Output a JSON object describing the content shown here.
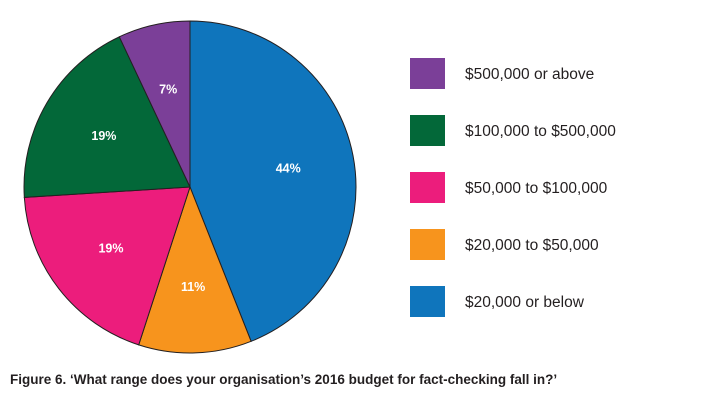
{
  "chart_data": {
    "type": "pie",
    "title": "Figure 6. ‘What range does your organisation’s 2016 budget for fact-checking fall in?’",
    "slices": [
      {
        "label": "$20,000 or below",
        "value": 44,
        "display": "44%",
        "color": "#0f75bc"
      },
      {
        "label": "$20,000 to $50,000",
        "value": 11,
        "display": "11%",
        "color": "#f7941d"
      },
      {
        "label": "$50,000 to $100,000",
        "value": 19,
        "display": "19%",
        "color": "#ec1d7c"
      },
      {
        "label": "$100,000 to $500,000",
        "value": 19,
        "display": "19%",
        "color": "#036839"
      },
      {
        "label": "$500,000 or above",
        "value": 7,
        "display": "7%",
        "color": "#7b3f98"
      }
    ],
    "legend_order": [
      4,
      3,
      2,
      1,
      0
    ],
    "legend_position": "right"
  }
}
